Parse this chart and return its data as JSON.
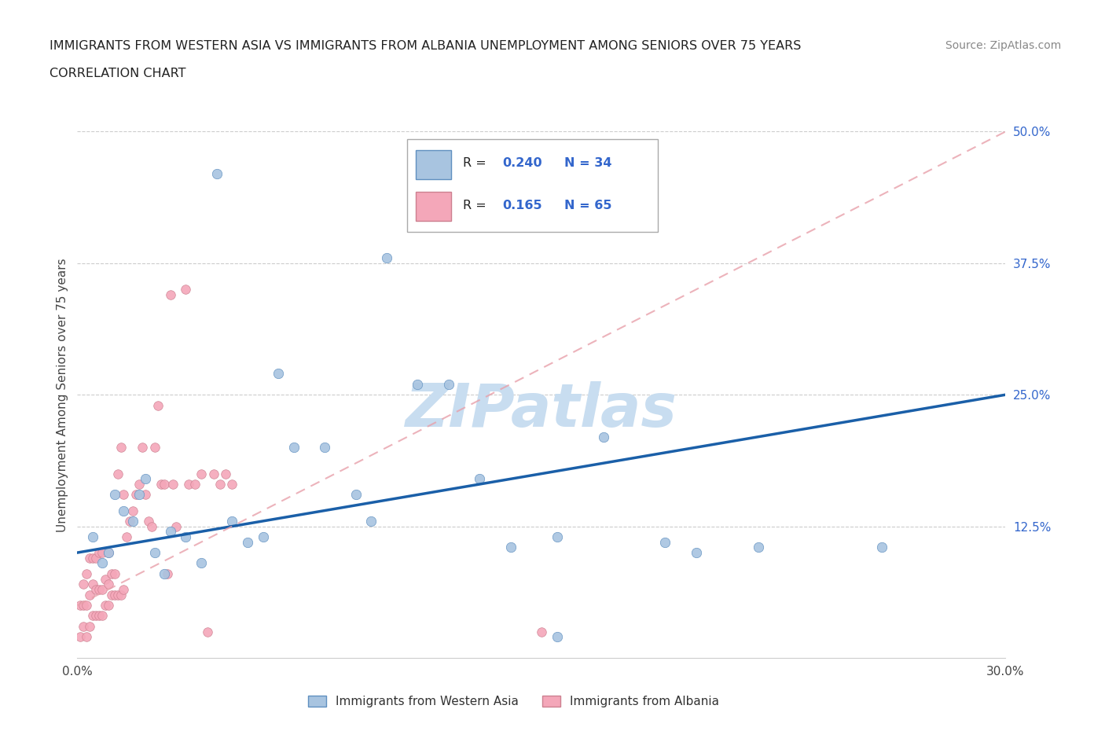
{
  "title_line1": "IMMIGRANTS FROM WESTERN ASIA VS IMMIGRANTS FROM ALBANIA UNEMPLOYMENT AMONG SENIORS OVER 75 YEARS",
  "title_line2": "CORRELATION CHART",
  "source": "Source: ZipAtlas.com",
  "ylabel": "Unemployment Among Seniors over 75 years",
  "xlim": [
    0.0,
    0.3
  ],
  "ylim": [
    0.0,
    0.5
  ],
  "xticks": [
    0.0,
    0.05,
    0.1,
    0.15,
    0.2,
    0.25,
    0.3
  ],
  "yticks_right": [
    0.0,
    0.125,
    0.25,
    0.375,
    0.5
  ],
  "ytick_labels_right": [
    "",
    "12.5%",
    "25.0%",
    "37.5%",
    "50.0%"
  ],
  "R_western": 0.24,
  "N_western": 34,
  "R_albania": 0.165,
  "N_albania": 65,
  "color_western": "#a8c4e0",
  "color_albania": "#f4a7b9",
  "trendline_western_color": "#1a5fa8",
  "trendline_albania_color": "#e8a0aa",
  "watermark": "ZIPatlas",
  "western_x": [
    0.005,
    0.008,
    0.01,
    0.012,
    0.015,
    0.018,
    0.02,
    0.022,
    0.025,
    0.028,
    0.03,
    0.035,
    0.04,
    0.045,
    0.05,
    0.055,
    0.06,
    0.065,
    0.07,
    0.08,
    0.09,
    0.095,
    0.1,
    0.11,
    0.12,
    0.13,
    0.14,
    0.155,
    0.17,
    0.19,
    0.2,
    0.22,
    0.26,
    0.155
  ],
  "western_y": [
    0.115,
    0.09,
    0.1,
    0.155,
    0.14,
    0.13,
    0.155,
    0.17,
    0.1,
    0.08,
    0.12,
    0.115,
    0.09,
    0.46,
    0.13,
    0.11,
    0.115,
    0.27,
    0.2,
    0.2,
    0.155,
    0.13,
    0.38,
    0.26,
    0.26,
    0.17,
    0.105,
    0.115,
    0.21,
    0.11,
    0.1,
    0.105,
    0.105,
    0.02
  ],
  "albania_x": [
    0.001,
    0.001,
    0.002,
    0.002,
    0.002,
    0.003,
    0.003,
    0.003,
    0.004,
    0.004,
    0.004,
    0.005,
    0.005,
    0.005,
    0.006,
    0.006,
    0.006,
    0.007,
    0.007,
    0.007,
    0.008,
    0.008,
    0.008,
    0.009,
    0.009,
    0.01,
    0.01,
    0.01,
    0.011,
    0.011,
    0.012,
    0.012,
    0.013,
    0.013,
    0.014,
    0.014,
    0.015,
    0.015,
    0.016,
    0.017,
    0.018,
    0.019,
    0.02,
    0.021,
    0.022,
    0.023,
    0.024,
    0.025,
    0.026,
    0.027,
    0.028,
    0.029,
    0.03,
    0.031,
    0.032,
    0.035,
    0.036,
    0.038,
    0.04,
    0.042,
    0.044,
    0.046,
    0.048,
    0.05,
    0.15
  ],
  "albania_y": [
    0.05,
    0.02,
    0.03,
    0.05,
    0.07,
    0.02,
    0.05,
    0.08,
    0.03,
    0.06,
    0.095,
    0.04,
    0.07,
    0.095,
    0.04,
    0.065,
    0.095,
    0.04,
    0.065,
    0.1,
    0.04,
    0.065,
    0.1,
    0.05,
    0.075,
    0.05,
    0.07,
    0.1,
    0.06,
    0.08,
    0.06,
    0.08,
    0.06,
    0.175,
    0.06,
    0.2,
    0.065,
    0.155,
    0.115,
    0.13,
    0.14,
    0.155,
    0.165,
    0.2,
    0.155,
    0.13,
    0.125,
    0.2,
    0.24,
    0.165,
    0.165,
    0.08,
    0.345,
    0.165,
    0.125,
    0.35,
    0.165,
    0.165,
    0.175,
    0.025,
    0.175,
    0.165,
    0.175,
    0.165,
    0.025
  ]
}
